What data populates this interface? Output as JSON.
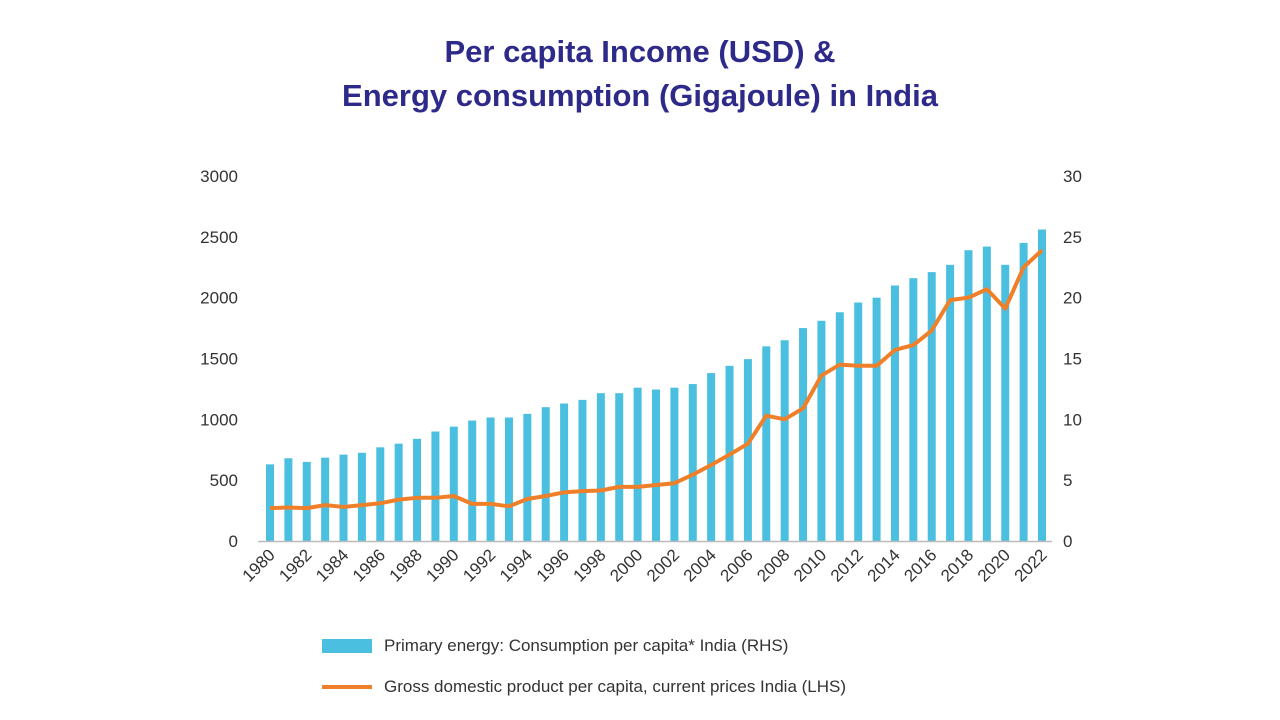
{
  "chart_data": {
    "type": "bar+line",
    "title_line1": "Per capita Income (USD) &",
    "title_line2": "Energy consumption (Gigajoule) in India",
    "left_axis": {
      "ylim": [
        0,
        3000
      ],
      "ticks": [
        "0",
        "500",
        "1000",
        "1500",
        "2000",
        "2500",
        "3000"
      ]
    },
    "right_axis": {
      "ylim": [
        0,
        30
      ],
      "ticks": [
        "0",
        "5",
        "10",
        "15",
        "20",
        "25",
        "30"
      ]
    },
    "x": [
      1980,
      1981,
      1982,
      1983,
      1984,
      1985,
      1986,
      1987,
      1988,
      1989,
      1990,
      1991,
      1992,
      1993,
      1994,
      1995,
      1996,
      1997,
      1998,
      1999,
      2000,
      2001,
      2002,
      2003,
      2004,
      2005,
      2006,
      2007,
      2008,
      2009,
      2010,
      2011,
      2012,
      2013,
      2014,
      2015,
      2016,
      2017,
      2018,
      2019,
      2020,
      2021,
      2022
    ],
    "x_tick_labels": [
      "1980",
      "1982",
      "1984",
      "1986",
      "1988",
      "1990",
      "1992",
      "1994",
      "1996",
      "1998",
      "2000",
      "2002",
      "2004",
      "2006",
      "2008",
      "2010",
      "2012",
      "2014",
      "2016",
      "2018",
      "2020",
      "2022"
    ],
    "grid": false,
    "legend_placement": "bottom",
    "series": [
      {
        "name": "Primary energy: Consumption per capita* India (RHS)",
        "type": "bar",
        "axis": "right",
        "color": "#4bbfe0",
        "values": [
          6.3,
          6.8,
          6.5,
          6.85,
          7.1,
          7.25,
          7.7,
          8.0,
          8.4,
          9.0,
          9.4,
          9.9,
          10.15,
          10.15,
          10.45,
          11.0,
          11.3,
          11.6,
          12.15,
          12.15,
          12.6,
          12.45,
          12.6,
          12.9,
          13.8,
          14.4,
          14.95,
          16.0,
          16.5,
          17.5,
          18.1,
          18.8,
          19.6,
          20.0,
          21.0,
          21.6,
          22.1,
          22.7,
          23.9,
          24.2,
          22.7,
          24.5,
          25.6
        ]
      },
      {
        "name": "Gross domestic product per capita, current prices India (LHS)",
        "type": "line",
        "axis": "left",
        "color": "#f07f2a",
        "values": [
          270,
          275,
          270,
          295,
          280,
          295,
          310,
          340,
          355,
          355,
          370,
          305,
          305,
          285,
          345,
          370,
          400,
          410,
          415,
          445,
          445,
          460,
          475,
          545,
          625,
          710,
          800,
          1030,
          1000,
          1090,
          1360,
          1450,
          1440,
          1440,
          1570,
          1610,
          1730,
          1980,
          2000,
          2070,
          1910,
          2250,
          2390
        ]
      }
    ]
  }
}
